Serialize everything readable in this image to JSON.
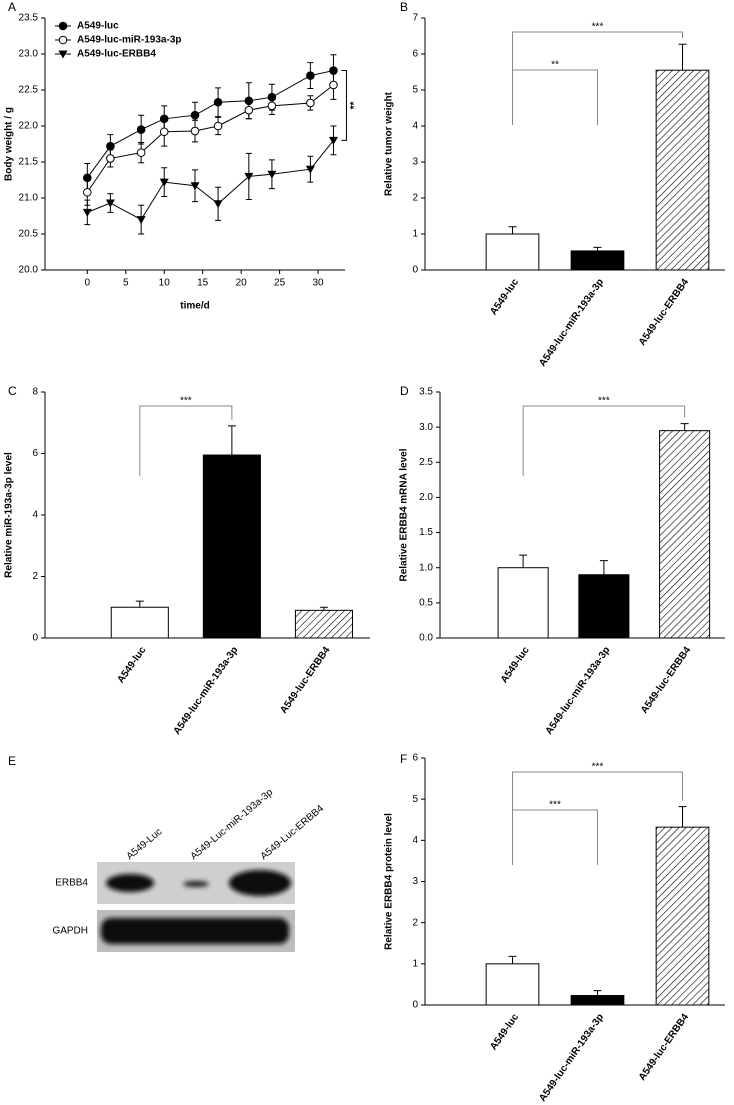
{
  "chart_data": [
    {
      "panel": "A",
      "type": "line",
      "xlabel": "time/d",
      "ylabel": "Body weight / g",
      "x": [
        0,
        3,
        7,
        10,
        14,
        17,
        21,
        24,
        29,
        32
      ],
      "xlim": [
        -5.5,
        33.5
      ],
      "xticks": [
        0,
        5,
        10,
        15,
        20,
        25,
        30
      ],
      "ylim": [
        20,
        23.5
      ],
      "yticks": [
        {
          "value": 20,
          "label": "20.0"
        },
        20.5,
        {
          "value": 21,
          "label": "21.0"
        },
        21.5,
        {
          "value": 22,
          "label": "22.0"
        },
        22.5,
        {
          "value": 23,
          "label": "23.0"
        },
        23.5
      ],
      "legend": "upper-left",
      "series": [
        {
          "name": "A549-luc",
          "color": "#000000",
          "marker": "filled-circle",
          "values": [
            21.28,
            21.72,
            21.95,
            22.1,
            22.15,
            22.33,
            22.35,
            22.4,
            22.7,
            22.77
          ],
          "errors": [
            0.2,
            0.16,
            0.2,
            0.18,
            0.18,
            0.2,
            0.25,
            0.18,
            0.18,
            0.22
          ]
        },
        {
          "name": "A549-luc-miR-193a-3p",
          "color": "#000000",
          "marker": "open-circle",
          "values": [
            21.08,
            21.55,
            21.63,
            21.92,
            21.93,
            22.0,
            22.22,
            22.28,
            22.32,
            22.57
          ],
          "errors": [
            0.18,
            0.12,
            0.14,
            0.2,
            0.15,
            0.12,
            0.12,
            0.12,
            0.1,
            0.2
          ]
        },
        {
          "name": "A549-luc-ERBB4",
          "color": "#000000",
          "marker": "down-triangle",
          "values": [
            20.8,
            20.93,
            20.7,
            21.22,
            21.17,
            20.92,
            21.3,
            21.33,
            21.4,
            21.8
          ],
          "errors": [
            0.17,
            0.13,
            0.2,
            0.2,
            0.22,
            0.23,
            0.32,
            0.2,
            0.18,
            0.2
          ]
        }
      ],
      "annotations": [
        {
          "text": "**",
          "between": [
            "A549-luc",
            "A549-luc-ERBB4"
          ]
        }
      ]
    },
    {
      "panel": "B",
      "type": "bar",
      "ylabel": "Relative tumor weight",
      "categories": [
        "A549-luc",
        "A549-luc-miR-193a-3p",
        "A549-luc-ERBB4"
      ],
      "values": [
        1.0,
        0.53,
        5.55
      ],
      "errors": [
        0.2,
        0.1,
        0.72
      ],
      "fills": [
        "#ffffff",
        "#000000",
        "hatch"
      ],
      "ylim": [
        0,
        7
      ],
      "yticks": [
        0,
        1,
        2,
        3,
        4,
        5,
        6,
        7
      ],
      "annotations": [
        {
          "text": "***",
          "between": [
            "A549-luc",
            "A549-luc-ERBB4"
          ]
        },
        {
          "text": "**",
          "between": [
            "A549-luc",
            "A549-luc-miR-193a-3p"
          ]
        }
      ]
    },
    {
      "panel": "C",
      "type": "bar",
      "ylabel": "Relative miR-193a-3p level",
      "categories": [
        "A549-luc",
        "A549-luc-miR-193a-3p",
        "A549-luc-ERBB4"
      ],
      "values": [
        1.0,
        5.95,
        0.9
      ],
      "errors": [
        0.2,
        0.95,
        0.1
      ],
      "fills": [
        "#ffffff",
        "#000000",
        "hatch"
      ],
      "ylim": [
        0,
        8
      ],
      "yticks": [
        0,
        2,
        4,
        6,
        8
      ],
      "annotations": [
        {
          "text": "***",
          "between": [
            "A549-luc",
            "A549-luc-miR-193a-3p"
          ]
        }
      ]
    },
    {
      "panel": "D",
      "type": "bar",
      "ylabel": "Relative ERBB4 mRNA level",
      "categories": [
        "A549-luc",
        "A549-luc-miR-193a-3p",
        "A549-luc-ERBB4"
      ],
      "values": [
        1.0,
        0.9,
        2.95
      ],
      "errors": [
        0.18,
        0.2,
        0.1
      ],
      "fills": [
        "#ffffff",
        "#000000",
        "hatch"
      ],
      "ylim": [
        0,
        3.5
      ],
      "yticks": [
        {
          "value": 0,
          "label": "0.0"
        },
        0.5,
        {
          "value": 1,
          "label": "1.0"
        },
        1.5,
        {
          "value": 2,
          "label": "2.0"
        },
        2.5,
        {
          "value": 3,
          "label": "3.0"
        },
        3.5
      ],
      "annotations": [
        {
          "text": "***",
          "between": [
            "A549-luc",
            "A549-luc-ERBB4"
          ]
        }
      ]
    },
    {
      "panel": "F",
      "type": "bar",
      "ylabel": "Relative ERBB4 protein level",
      "categories": [
        "A549-luc",
        "A549-luc-miR-193a-3p",
        "A549-luc-ERBB4"
      ],
      "values": [
        1.0,
        0.23,
        4.32
      ],
      "errors": [
        0.18,
        0.12,
        0.5
      ],
      "fills": [
        "#ffffff",
        "#000000",
        "hatch"
      ],
      "ylim": [
        0,
        6
      ],
      "yticks": [
        0,
        1,
        2,
        3,
        4,
        5,
        6
      ],
      "annotations": [
        {
          "text": "***",
          "between": [
            "A549-luc",
            "A549-luc-ERBB4"
          ]
        },
        {
          "text": "***",
          "between": [
            "A549-luc",
            "A549-luc-miR-193a-3p"
          ]
        }
      ]
    }
  ],
  "blot": {
    "panel": "E",
    "lanes": [
      "A549-Luc",
      "A549-Luc-miR-193a-3p",
      "A549-Luc-ERBB4"
    ],
    "rows": [
      "ERBB4",
      "GAPDH"
    ]
  }
}
